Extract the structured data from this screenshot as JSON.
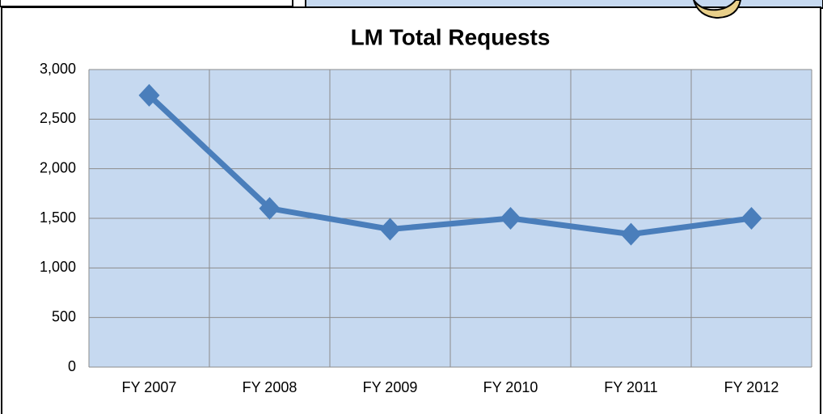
{
  "chart_data": {
    "type": "line",
    "title": "LM Total Requests",
    "categories": [
      "FY 2007",
      "FY 2008",
      "FY 2009",
      "FY 2010",
      "FY 2011",
      "FY 2012"
    ],
    "values": [
      2740,
      1600,
      1390,
      1500,
      1340,
      1500
    ],
    "color": "#4a7ebb",
    "ylim": [
      0,
      3000
    ],
    "yticks": [
      0,
      500,
      {
        "value": 1000,
        "label": "1,000"
      },
      {
        "value": 1500,
        "label": "1,500"
      },
      {
        "value": 2000,
        "label": "2,000"
      },
      {
        "value": 2500,
        "label": "2,500"
      },
      {
        "value": 3000,
        "label": "3,000"
      }
    ],
    "grid": true
  }
}
